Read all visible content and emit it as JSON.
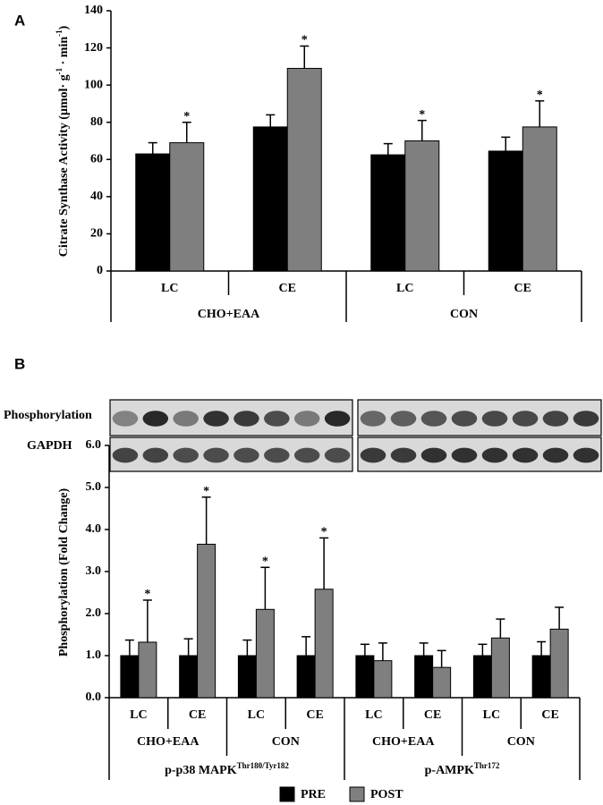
{
  "chart_data": [
    {
      "type": "bar",
      "panel": "A",
      "y_label": [
        {
          "text": "Citrate Synthase Activity (μmol· g"
        },
        {
          "sup": "-1"
        },
        {
          "text": " · min"
        },
        {
          "sup": "-1"
        },
        {
          "text": ")"
        }
      ],
      "categories": [
        "LC",
        "CE",
        "LC",
        "CE"
      ],
      "groups": [
        "CHO+EAA",
        "CON"
      ],
      "ylim": [
        0,
        140
      ],
      "yticks": [
        0,
        20,
        40,
        60,
        80,
        100,
        120,
        140
      ],
      "series": [
        {
          "color": "#000000",
          "values": [
            63,
            77.5,
            62.5,
            64.5
          ],
          "errors": [
            6,
            6.5,
            6,
            7.5
          ]
        },
        {
          "color": "#7f7f7f",
          "values": [
            69,
            109,
            70,
            77.5
          ],
          "errors": [
            11,
            12,
            11,
            14
          ],
          "markers": [
            "*",
            "*",
            "*",
            "*"
          ]
        }
      ]
    },
    {
      "type": "bar",
      "panel": "B",
      "blot_labels": [
        "Phosphorylation",
        "GAPDH"
      ],
      "y_label": [
        {
          "text": "Phosphorylation (Fold Change)"
        }
      ],
      "categories": [
        "LC",
        "CE",
        "LC",
        "CE",
        "LC",
        "CE",
        "LC",
        "CE"
      ],
      "groups": [
        "CHO+EAA",
        "CON",
        "CHO+EAA",
        "CON"
      ],
      "top_groups": [
        {
          "text": "p-p38 MAPK",
          "sup": "Thr180/Tyr182"
        },
        {
          "text": "p-AMPK",
          "sup": "Thr172"
        }
      ],
      "ylim": [
        0,
        6
      ],
      "yticks": [
        {
          "value": 0,
          "label": "0.0"
        },
        {
          "value": 1,
          "label": "1.0"
        },
        {
          "value": 2,
          "label": "2.0"
        },
        {
          "value": 3,
          "label": "3.0"
        },
        {
          "value": 4,
          "label": "4.0"
        },
        {
          "value": 5,
          "label": "5.0"
        },
        {
          "value": 6,
          "label": "6.0"
        }
      ],
      "series": [
        {
          "name": "PRE",
          "color": "#000000",
          "values": [
            1,
            1,
            1,
            1,
            1,
            1,
            1,
            1
          ],
          "errors": [
            0.37,
            0.4,
            0.37,
            0.45,
            0.27,
            0.3,
            0.27,
            0.33
          ]
        },
        {
          "name": "POST",
          "color": "#7f7f7f",
          "values": [
            1.32,
            3.65,
            2.1,
            2.58,
            0.88,
            0.72,
            1.42,
            1.63
          ],
          "errors": [
            1.0,
            1.12,
            1.0,
            1.22,
            0.42,
            0.4,
            0.45,
            0.52
          ],
          "markers": [
            "*",
            "*",
            "*",
            "*",
            null,
            null,
            null,
            null
          ]
        }
      ]
    }
  ]
}
